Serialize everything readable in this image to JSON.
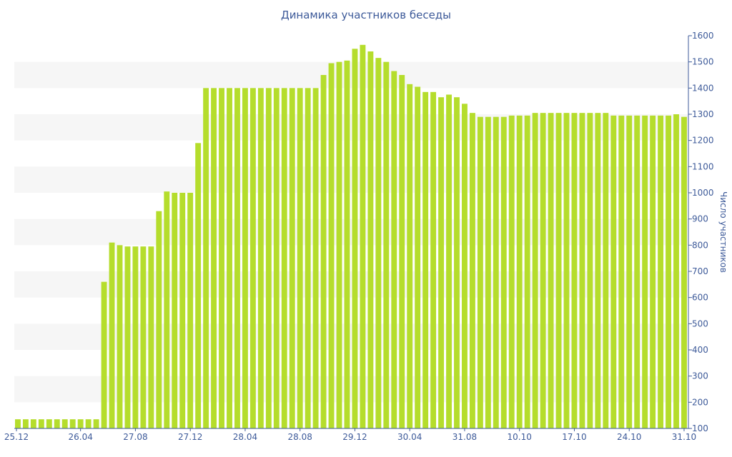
{
  "chart_data": {
    "type": "bar",
    "title": "Динамика участников беседы",
    "ylabel": "Число участников",
    "xlabel": "",
    "ylim": [
      100,
      1600
    ],
    "yticks": [
      100,
      200,
      300,
      400,
      500,
      600,
      700,
      800,
      900,
      1000,
      1100,
      1200,
      1300,
      1400,
      1500,
      1600
    ],
    "y_axis_side": "right",
    "grid": "alternating horizontal bands",
    "colors": {
      "bar": "#b5dd2c",
      "text": "#3d5a99",
      "axis": "#3d5a99",
      "band": "#f6f6f6"
    },
    "xtick_labels": [
      {
        "label": "25.12",
        "index": 0
      },
      {
        "label": "26.04",
        "index": 8
      },
      {
        "label": "27.08",
        "index": 15
      },
      {
        "label": "27.12",
        "index": 22
      },
      {
        "label": "28.04",
        "index": 29
      },
      {
        "label": "28.08",
        "index": 36
      },
      {
        "label": "29.12",
        "index": 43
      },
      {
        "label": "30.04",
        "index": 50
      },
      {
        "label": "31.08",
        "index": 57
      },
      {
        "label": "10.10",
        "index": 64
      },
      {
        "label": "17.10",
        "index": 71
      },
      {
        "label": "24.10",
        "index": 78
      },
      {
        "label": "31.10",
        "index": 85
      }
    ],
    "values": [
      135,
      135,
      135,
      135,
      135,
      135,
      135,
      135,
      135,
      135,
      135,
      660,
      810,
      800,
      795,
      795,
      795,
      795,
      930,
      1005,
      1000,
      1000,
      1000,
      1190,
      1400,
      1400,
      1400,
      1400,
      1400,
      1400,
      1400,
      1400,
      1400,
      1400,
      1400,
      1400,
      1400,
      1400,
      1400,
      1450,
      1495,
      1500,
      1505,
      1550,
      1565,
      1540,
      1515,
      1500,
      1465,
      1450,
      1415,
      1405,
      1385,
      1385,
      1365,
      1375,
      1365,
      1340,
      1305,
      1290,
      1290,
      1290,
      1290,
      1295,
      1295,
      1295,
      1305,
      1305,
      1305,
      1305,
      1305,
      1305,
      1305,
      1305,
      1305,
      1305,
      1295,
      1295,
      1295,
      1295,
      1295,
      1295,
      1295,
      1295,
      1300,
      1290
    ]
  }
}
